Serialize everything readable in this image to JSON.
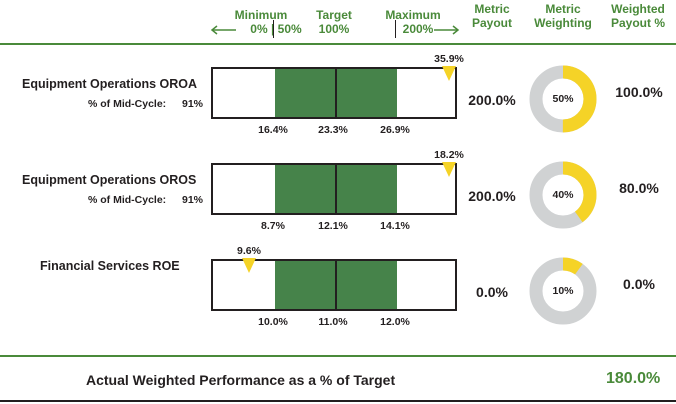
{
  "header": {
    "minimum": "Minimum",
    "minimum_scale": "0% | 50%",
    "target": "Target",
    "target_scale": "100%",
    "maximum": "Maximum",
    "maximum_scale": "200%",
    "metric_payout": [
      "Metric",
      "Payout"
    ],
    "metric_weighting": [
      "Metric",
      "Weighting"
    ],
    "weighted_payout": [
      "Weighted",
      "Payout %"
    ]
  },
  "colors": {
    "green_header": "#4a8a3a",
    "target_zone": "#46834a",
    "marker": "#f5d327",
    "donut_fill": "#f5d327",
    "donut_track": "#d0d2d3"
  },
  "chart_data": {
    "type": "bullet",
    "scale_points": {
      "minimum_percent": 50,
      "target_percent": 100,
      "maximum_percent": 200
    },
    "metrics": [
      {
        "name": "Equipment Operations OROA",
        "sublabel": "% of Mid-Cycle:",
        "sublabel_value": "91%",
        "ticks": [
          "16.4%",
          "23.3%",
          "26.9%"
        ],
        "tick_values": [
          16.4,
          23.3,
          26.9
        ],
        "actual_label": "35.9%",
        "actual_value": 35.9,
        "metric_payout": "200.0%",
        "weighting_label": "50%",
        "weighting_value": 50,
        "weighted_payout": "100.0%"
      },
      {
        "name": "Equipment Operations OROS",
        "sublabel": "% of Mid-Cycle:",
        "sublabel_value": "91%",
        "ticks": [
          "8.7%",
          "12.1%",
          "14.1%"
        ],
        "tick_values": [
          8.7,
          12.1,
          14.1
        ],
        "actual_label": "18.2%",
        "actual_value": 18.2,
        "metric_payout": "200.0%",
        "weighting_label": "40%",
        "weighting_value": 40,
        "weighted_payout": "80.0%"
      },
      {
        "name": "Financial Services ROE",
        "sublabel": "",
        "sublabel_value": "",
        "ticks": [
          "10.0%",
          "11.0%",
          "12.0%"
        ],
        "tick_values": [
          10.0,
          11.0,
          12.0
        ],
        "actual_label": "9.6%",
        "actual_value": 9.6,
        "metric_payout": "0.0%",
        "weighting_label": "10%",
        "weighting_value": 10,
        "weighted_payout": "0.0%"
      }
    ]
  },
  "footer": {
    "label": "Actual Weighted Performance as a % of Target",
    "value": "180.0%"
  }
}
